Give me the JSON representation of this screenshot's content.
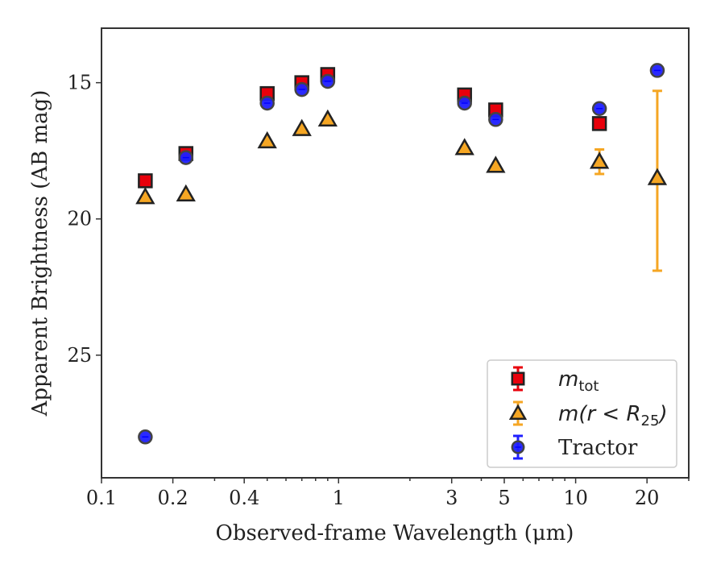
{
  "chart_data": {
    "type": "scatter",
    "title": "",
    "xlabel": "Observed-frame Wavelength (μm)",
    "ylabel": "Apparent Brightness (AB mag)",
    "xscale": "log",
    "xlim": [
      0.1,
      30
    ],
    "ylim": [
      29.5,
      13.0
    ],
    "y_inverted": true,
    "grid": false,
    "legend_position": "bottom-right",
    "x_tick_labels": [
      "0.1",
      "0.2",
      "0.4",
      "1",
      "3",
      "5",
      "10",
      "20"
    ],
    "x_ticks": [
      0.1,
      0.2,
      0.4,
      1,
      3,
      5,
      10,
      20
    ],
    "y_tick_labels": [
      "15",
      "20",
      "25"
    ],
    "y_ticks": [
      15,
      20,
      25
    ],
    "series": [
      {
        "name": "m_tot",
        "legend_main": "m",
        "legend_sub": "tot",
        "marker": "square",
        "color": "#e8000b",
        "edge": "#222222",
        "points": [
          {
            "x": 0.153,
            "y": 18.6
          },
          {
            "x": 0.227,
            "y": 17.6
          },
          {
            "x": 0.5,
            "y": 15.4
          },
          {
            "x": 0.7,
            "y": 15.0
          },
          {
            "x": 0.9,
            "y": 14.7
          },
          {
            "x": 3.4,
            "y": 15.45
          },
          {
            "x": 4.6,
            "y": 16.0
          },
          {
            "x": 12.6,
            "y": 16.5
          }
        ]
      },
      {
        "name": "m(r < R25)",
        "legend_main": "m(r < R",
        "legend_sub": "25",
        "legend_tail": ")",
        "marker": "triangle",
        "color": "#f5a623",
        "edge": "#222222",
        "points": [
          {
            "x": 0.153,
            "y": 19.2
          },
          {
            "x": 0.227,
            "y": 19.1
          },
          {
            "x": 0.5,
            "y": 17.15
          },
          {
            "x": 0.7,
            "y": 16.7
          },
          {
            "x": 0.9,
            "y": 16.35
          },
          {
            "x": 3.4,
            "y": 17.4
          },
          {
            "x": 4.6,
            "y": 18.05
          },
          {
            "x": 12.6,
            "y": 17.9,
            "err": 0.45
          },
          {
            "x": 22.1,
            "y": 18.5,
            "err_low": 3.4,
            "err_high": 3.2
          }
        ]
      },
      {
        "name": "Tractor",
        "legend_main": "Tractor",
        "marker": "circle",
        "color": "#1f1fff",
        "edge": "#444444",
        "points": [
          {
            "x": 0.153,
            "y": 28.0
          },
          {
            "x": 0.227,
            "y": 17.75
          },
          {
            "x": 0.5,
            "y": 15.75
          },
          {
            "x": 0.7,
            "y": 15.25
          },
          {
            "x": 0.9,
            "y": 14.95
          },
          {
            "x": 3.4,
            "y": 15.75
          },
          {
            "x": 4.6,
            "y": 16.35
          },
          {
            "x": 12.6,
            "y": 15.95
          },
          {
            "x": 22.1,
            "y": 14.55
          }
        ]
      }
    ]
  }
}
